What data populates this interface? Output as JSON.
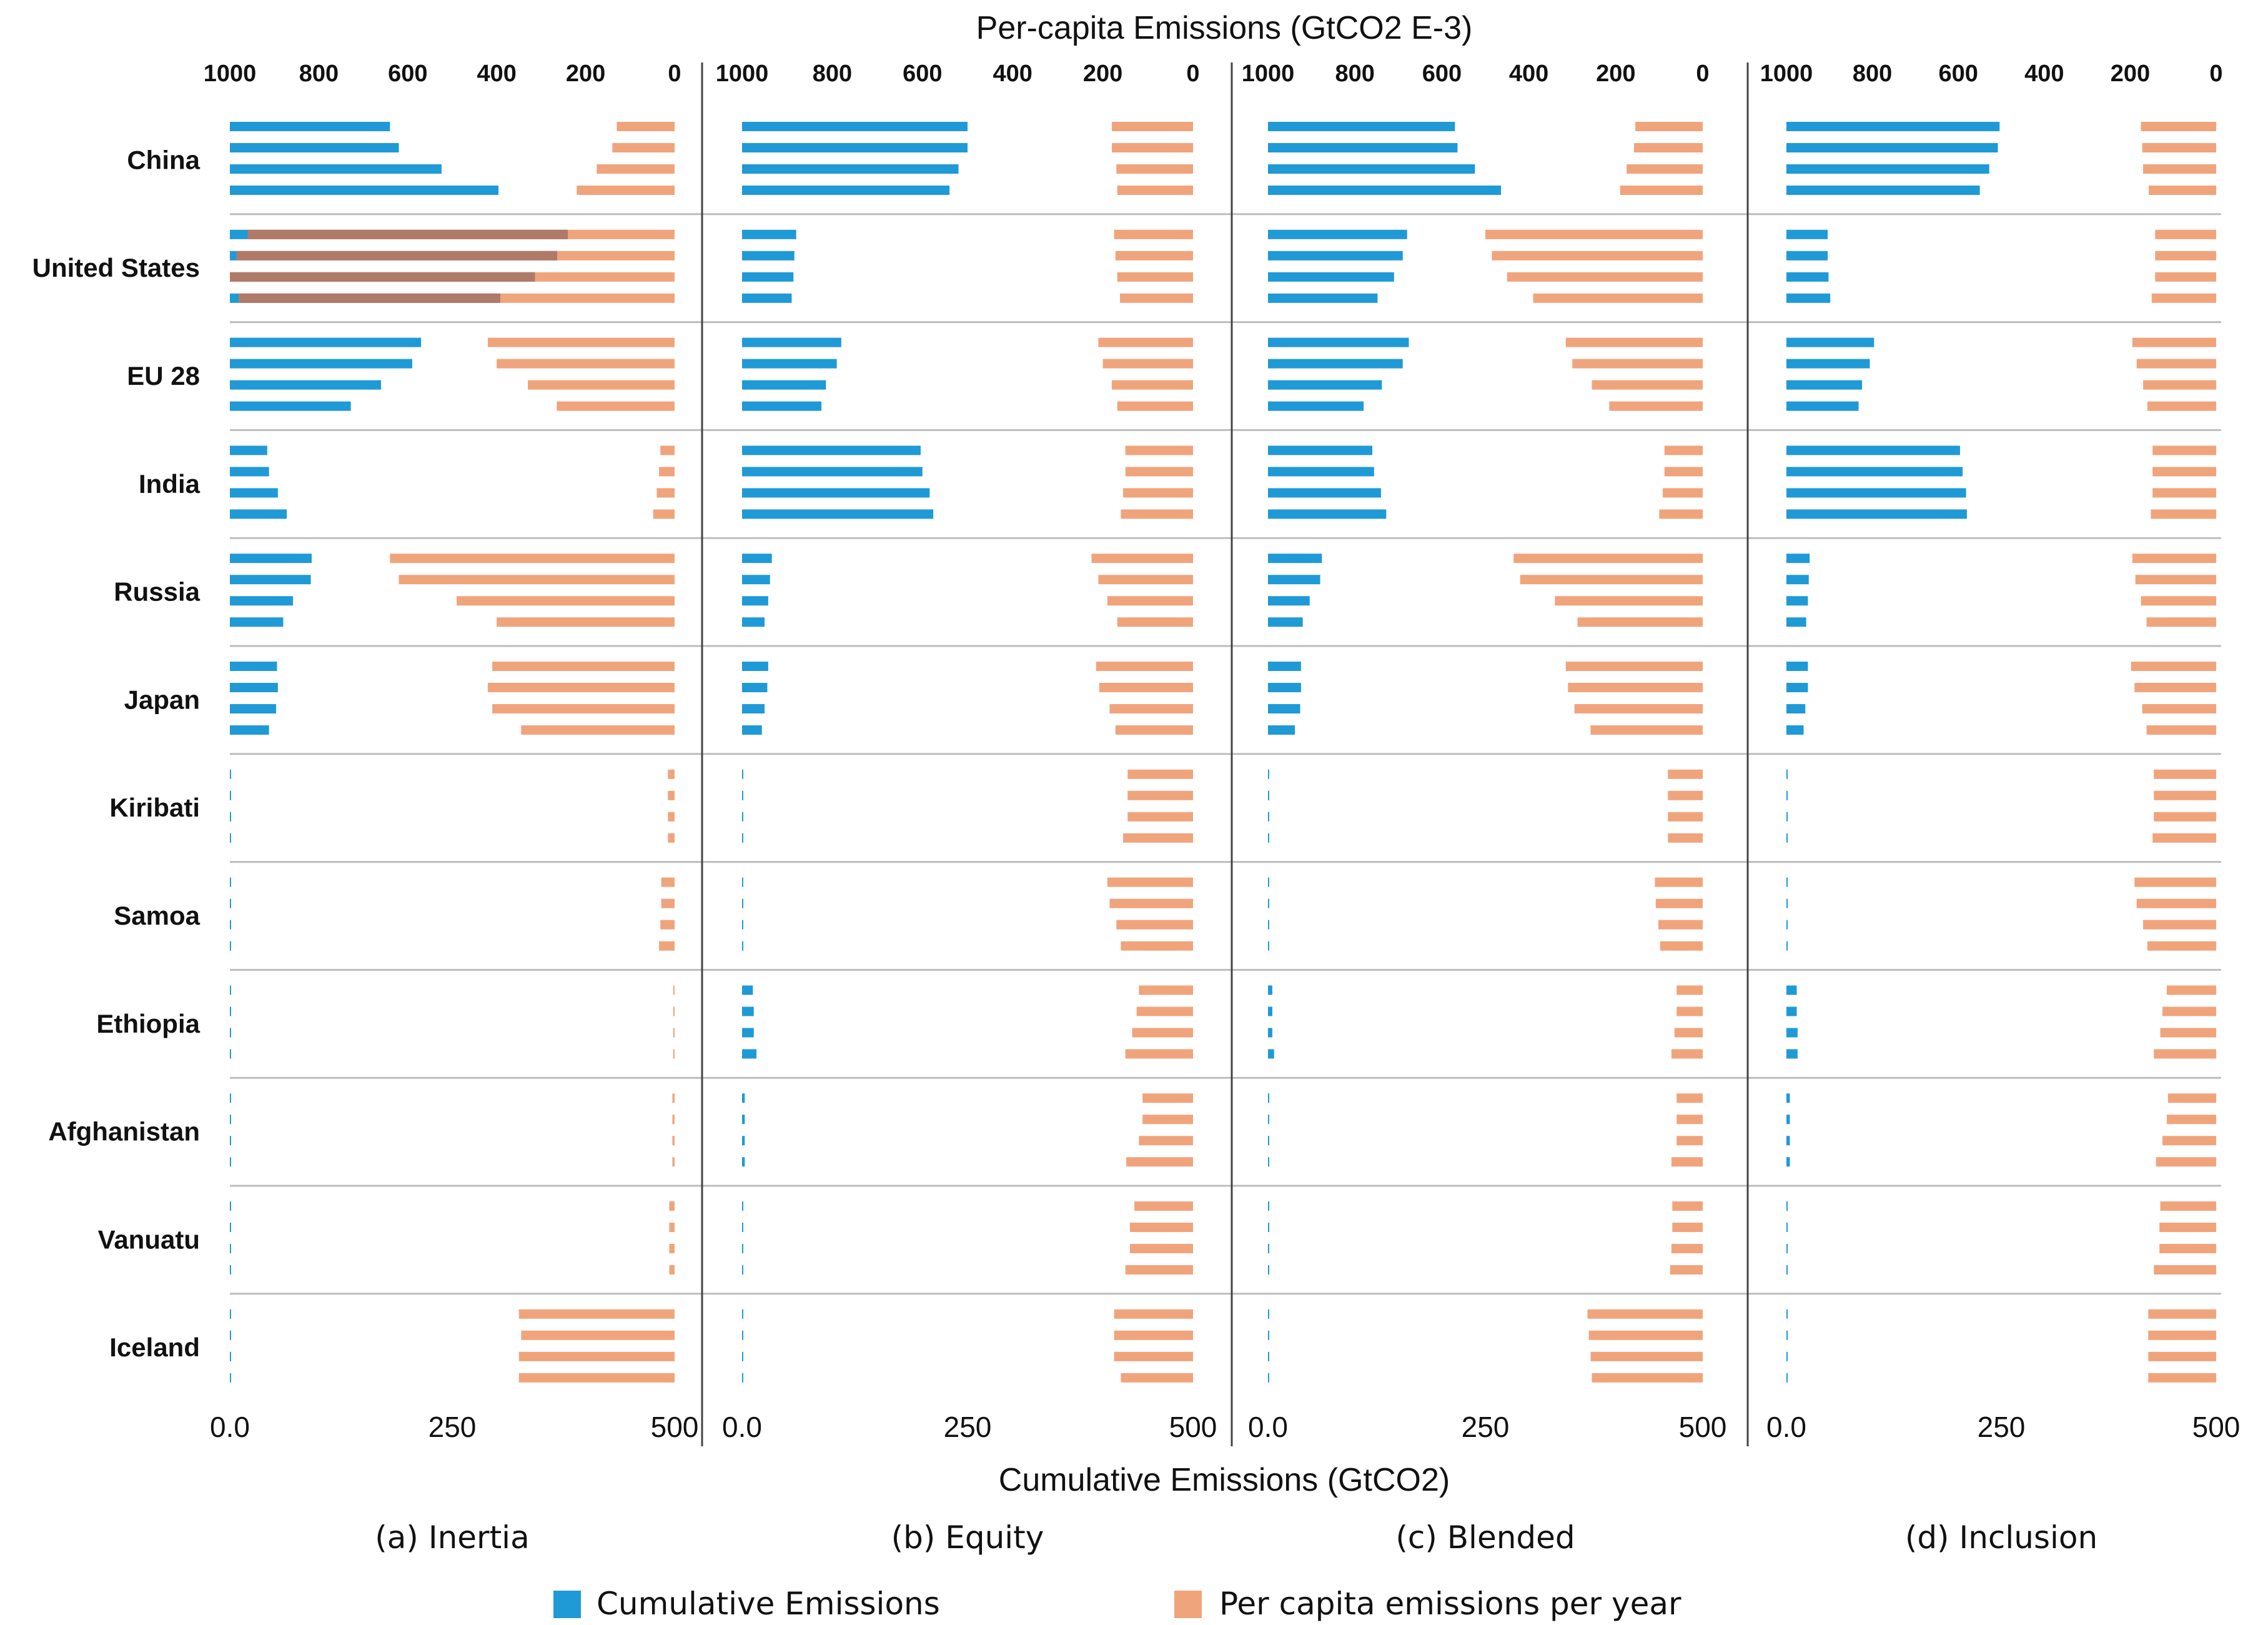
{
  "chart_data": {
    "type": "bar",
    "title": "Per-capita Emissions (GtCO2 E-3)",
    "xlabel": "Cumulative Emissions (GtCO2)",
    "top_axis": {
      "label": "Per-capita Emissions (GtCO2 E-3)",
      "ticks": [
        "1000",
        "800",
        "600",
        "400",
        "200",
        "0"
      ],
      "range": [
        0,
        1000
      ],
      "direction": "right-to-left"
    },
    "bottom_axis": {
      "label": "Cumulative Emissions (GtCO2)",
      "ticks": [
        "0.0",
        "250",
        "500"
      ],
      "range": [
        0,
        500
      ]
    },
    "legend": [
      {
        "name": "Cumulative Emissions",
        "color": "#1f9ad6"
      },
      {
        "name": "Per capita emissions per year",
        "color": "#f0a47c"
      }
    ],
    "overlap_color": "#b07a68",
    "countries": [
      "China",
      "United States",
      "EU 28",
      "India",
      "Russia",
      "Japan",
      "Kiribati",
      "Samoa",
      "Ethiopia",
      "Afghanistan",
      "Vanuatu",
      "Iceland"
    ],
    "panels": [
      {
        "label": "(a) Inertia",
        "cumulative": [
          [
            180,
            190,
            238,
            302
          ],
          [
            380,
            368,
            343,
            304
          ],
          [
            215,
            205,
            170,
            136
          ],
          [
            42,
            44,
            54,
            64
          ],
          [
            92,
            91,
            71,
            60
          ],
          [
            53,
            54,
            52,
            44
          ],
          [
            0.5,
            0.5,
            0.5,
            0.5
          ],
          [
            0.5,
            0.5,
            0.5,
            0.5
          ],
          [
            0.5,
            0.5,
            0.5,
            0.5
          ],
          [
            0.5,
            0.5,
            0.5,
            0.5
          ],
          [
            0.5,
            0.5,
            0.5,
            0.5
          ],
          [
            1,
            1,
            1,
            1
          ]
        ],
        "per_capita": [
          [
            130,
            140,
            175,
            220
          ],
          [
            960,
            985,
            1000,
            980
          ],
          [
            420,
            400,
            330,
            265
          ],
          [
            32,
            35,
            40,
            48
          ],
          [
            640,
            620,
            490,
            400
          ],
          [
            410,
            420,
            410,
            345
          ],
          [
            15,
            15,
            15,
            15
          ],
          [
            30,
            30,
            32,
            35
          ],
          [
            3,
            3,
            3,
            3
          ],
          [
            5,
            5,
            5,
            5
          ],
          [
            12,
            12,
            12,
            12
          ],
          [
            350,
            345,
            350,
            350
          ]
        ]
      },
      {
        "label": "(b) Equity",
        "cumulative": [
          [
            250,
            250,
            240,
            230
          ],
          [
            60,
            58,
            57,
            55
          ],
          [
            110,
            105,
            93,
            88
          ],
          [
            198,
            200,
            208,
            212
          ],
          [
            33,
            31,
            29,
            25
          ],
          [
            29,
            28,
            25,
            22
          ],
          [
            0.5,
            0.5,
            0.5,
            0.5
          ],
          [
            0.5,
            0.5,
            0.5,
            0.5
          ],
          [
            12,
            13,
            13,
            16
          ],
          [
            3,
            3,
            3,
            3
          ],
          [
            0.5,
            0.5,
            0.5,
            0.5
          ],
          [
            1,
            1,
            1,
            1
          ]
        ],
        "per_capita": [
          [
            180,
            180,
            170,
            168
          ],
          [
            175,
            172,
            168,
            162
          ],
          [
            210,
            200,
            180,
            168
          ],
          [
            150,
            150,
            155,
            160
          ],
          [
            225,
            210,
            190,
            168
          ],
          [
            215,
            208,
            185,
            172
          ],
          [
            145,
            145,
            145,
            155
          ],
          [
            190,
            185,
            170,
            160
          ],
          [
            120,
            125,
            135,
            150
          ],
          [
            112,
            112,
            120,
            148
          ],
          [
            130,
            140,
            140,
            150
          ],
          [
            175,
            175,
            175,
            160
          ]
        ]
      },
      {
        "label": "(c) Blended",
        "cumulative": [
          [
            215,
            218,
            238,
            268
          ],
          [
            160,
            155,
            145,
            126
          ],
          [
            162,
            155,
            131,
            110
          ],
          [
            120,
            122,
            130,
            136
          ],
          [
            62,
            60,
            48,
            40
          ],
          [
            38,
            38,
            37,
            31
          ],
          [
            0.5,
            0.5,
            0.5,
            0.5
          ],
          [
            0.5,
            0.5,
            0.5,
            0.5
          ],
          [
            5,
            5,
            5,
            7
          ],
          [
            0.5,
            0.5,
            0.5,
            0.5
          ],
          [
            0.5,
            0.5,
            0.5,
            0.5
          ],
          [
            1,
            1,
            1,
            1
          ]
        ],
        "per_capita": [
          [
            155,
            158,
            175,
            190
          ],
          [
            500,
            485,
            450,
            390
          ],
          [
            315,
            300,
            255,
            215
          ],
          [
            88,
            88,
            92,
            100
          ],
          [
            435,
            420,
            340,
            288
          ],
          [
            315,
            310,
            295,
            258
          ],
          [
            80,
            80,
            80,
            80
          ],
          [
            110,
            108,
            102,
            98
          ],
          [
            60,
            60,
            65,
            72
          ],
          [
            60,
            60,
            60,
            72
          ],
          [
            70,
            70,
            72,
            75
          ],
          [
            265,
            262,
            258,
            255
          ]
        ]
      },
      {
        "label": "(d) Inclusion",
        "cumulative": [
          [
            248,
            246,
            236,
            225
          ],
          [
            48,
            48,
            49,
            51
          ],
          [
            102,
            97,
            88,
            84
          ],
          [
            202,
            205,
            209,
            210
          ],
          [
            27,
            26,
            25,
            23
          ],
          [
            25,
            25,
            22,
            20
          ],
          [
            0.5,
            0.5,
            0.5,
            0.5
          ],
          [
            0.5,
            0.5,
            0.5,
            0.5
          ],
          [
            12,
            12,
            13,
            13
          ],
          [
            4,
            4,
            4,
            4
          ],
          [
            0.5,
            0.5,
            0.5,
            0.5
          ],
          [
            1,
            1,
            1,
            1
          ]
        ],
        "per_capita": [
          [
            175,
            172,
            170,
            157
          ],
          [
            142,
            142,
            142,
            150
          ],
          [
            195,
            185,
            170,
            160
          ],
          [
            148,
            148,
            148,
            152
          ],
          [
            195,
            188,
            175,
            162
          ],
          [
            198,
            190,
            172,
            162
          ],
          [
            145,
            145,
            145,
            148
          ],
          [
            190,
            185,
            170,
            160
          ],
          [
            115,
            125,
            130,
            145
          ],
          [
            112,
            115,
            125,
            140
          ],
          [
            130,
            132,
            132,
            145
          ],
          [
            158,
            158,
            158,
            158
          ]
        ]
      }
    ]
  }
}
